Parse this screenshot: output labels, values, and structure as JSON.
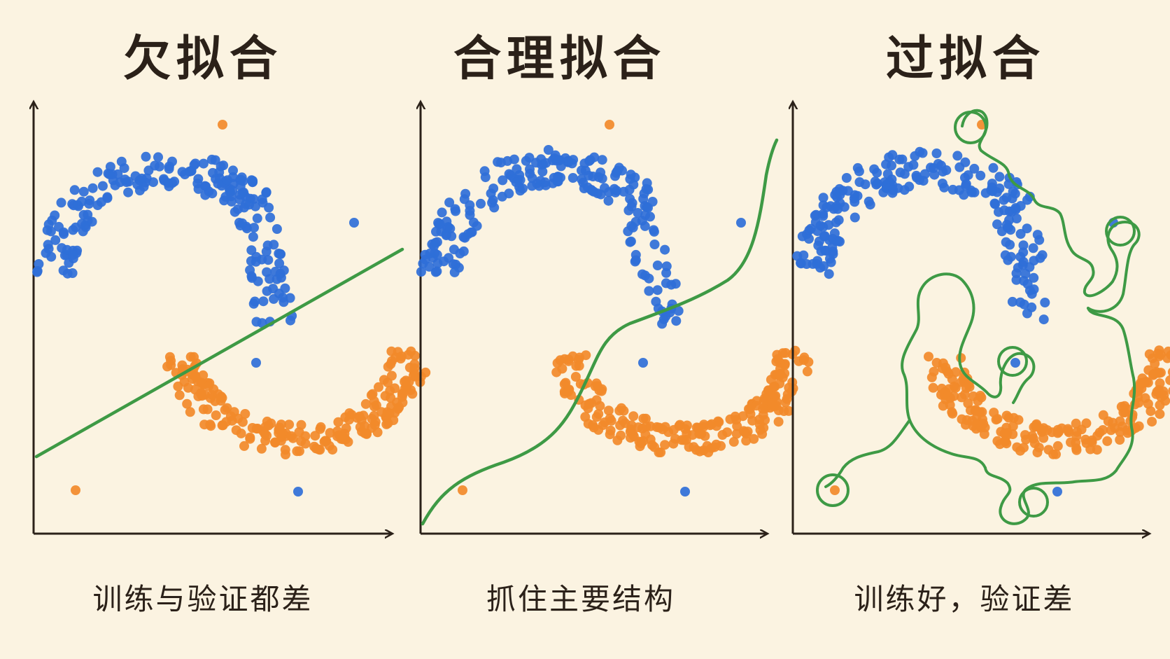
{
  "colors": {
    "background": "#fbf3e1",
    "ink": "#2b2119",
    "class_blue": "#2f6fd8",
    "class_orange": "#f28a2a",
    "boundary_green": "#3e9a45"
  },
  "panels": [
    {
      "key": "underfit",
      "title": "欠拟合",
      "caption": "训练与验证都差"
    },
    {
      "key": "goodfit",
      "title": "合理拟合",
      "caption": "抓住主要结构"
    },
    {
      "key": "overfit",
      "title": "过拟合",
      "caption": "训练好，验证差"
    }
  ]
}
